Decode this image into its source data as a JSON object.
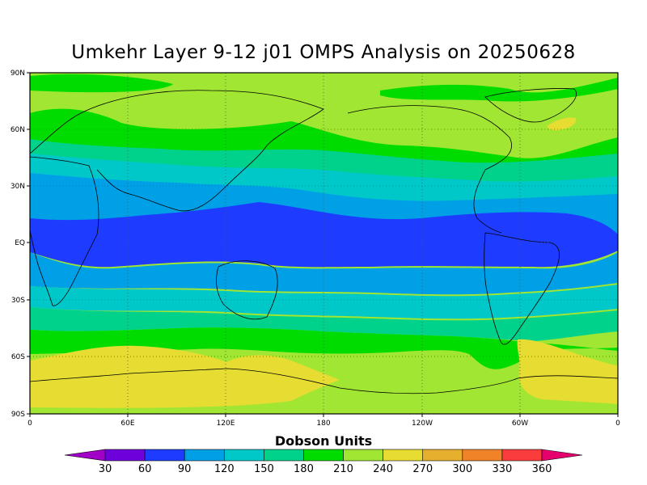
{
  "title": "Umkehr Layer 9-12 j01 OMPS Analysis on 20250628",
  "map": {
    "lat_ticks": [
      "90N",
      "60N",
      "30N",
      "EQ",
      "30S",
      "60S",
      "90S"
    ],
    "lon_ticks": [
      "0",
      "60E",
      "120E",
      "180",
      "120W",
      "60W",
      "0"
    ],
    "grid": true
  },
  "colorbar": {
    "title": "Dobson Units",
    "levels": [
      "30",
      "60",
      "90",
      "120",
      "150",
      "180",
      "210",
      "240",
      "270",
      "300",
      "330",
      "360"
    ],
    "colors": [
      "#a000c8",
      "#6e00dc",
      "#1e3cff",
      "#00a0e6",
      "#00c8c8",
      "#00d28c",
      "#00dc00",
      "#a0e632",
      "#e6dc32",
      "#e6af2d",
      "#f08228",
      "#fa3c3c",
      "#e6006e"
    ]
  },
  "chart_data": {
    "type": "heatmap",
    "title": "Umkehr Layer 9-12 j01 OMPS Analysis on 20250628",
    "units": "Dobson Units",
    "x_range": [
      0,
      360
    ],
    "y_range": [
      -90,
      90
    ],
    "latitude_bands": [
      {
        "lat": 90,
        "value": 225
      },
      {
        "lat": 75,
        "value": 205
      },
      {
        "lat": 60,
        "value": 225
      },
      {
        "lat": 50,
        "value": 200
      },
      {
        "lat": 40,
        "value": 175
      },
      {
        "lat": 30,
        "value": 140
      },
      {
        "lat": 15,
        "value": 110
      },
      {
        "lat": 0,
        "value": 75
      },
      {
        "lat": -15,
        "value": 110
      },
      {
        "lat": -30,
        "value": 140
      },
      {
        "lat": -45,
        "value": 190
      },
      {
        "lat": -60,
        "value": 240
      },
      {
        "lat": -75,
        "value": 265
      },
      {
        "lat": -90,
        "value": 240
      }
    ]
  }
}
